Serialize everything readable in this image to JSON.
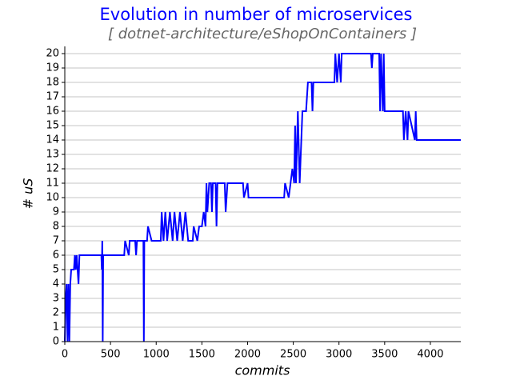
{
  "chart_data": {
    "type": "line",
    "title": "Evolution in number of microservices",
    "subtitle": "[ dotnet-architecture/eShopOnContainers ]",
    "x_label": "commits",
    "y_label": "# uS",
    "color": "#0000ff",
    "grid": true,
    "grid_axis": "y",
    "xlim": [
      0,
      4333
    ],
    "ylim": [
      0,
      20.5
    ],
    "xticks": [
      0,
      500,
      1000,
      1500,
      2000,
      2500,
      3000,
      3500,
      4000
    ],
    "yticks": [
      0,
      1,
      2,
      3,
      4,
      5,
      6,
      7,
      8,
      9,
      10,
      11,
      12,
      13,
      14,
      15,
      16,
      17,
      18,
      19,
      20
    ],
    "x": [
      0,
      10,
      20,
      30,
      40,
      50,
      60,
      70,
      100,
      110,
      120,
      130,
      150,
      160,
      170,
      400,
      405,
      410,
      415,
      420,
      650,
      660,
      700,
      710,
      770,
      780,
      790,
      860,
      865,
      870,
      900,
      910,
      950,
      1050,
      1060,
      1080,
      1100,
      1120,
      1150,
      1180,
      1200,
      1230,
      1260,
      1290,
      1320,
      1350,
      1400,
      1410,
      1450,
      1470,
      1500,
      1520,
      1540,
      1550,
      1560,
      1580,
      1600,
      1610,
      1620,
      1650,
      1660,
      1670,
      1750,
      1760,
      1780,
      1950,
      1960,
      2000,
      2010,
      2400,
      2410,
      2450,
      2470,
      2490,
      2510,
      2520,
      2530,
      2550,
      2570,
      2600,
      2640,
      2650,
      2660,
      2700,
      2710,
      2720,
      2950,
      2960,
      2980,
      3000,
      3020,
      3030,
      3350,
      3360,
      3370,
      3440,
      3450,
      3460,
      3480,
      3490,
      3500,
      3700,
      3710,
      3730,
      3750,
      3760,
      3830,
      3840,
      3850,
      4333
    ],
    "values": [
      0,
      3,
      4,
      0,
      4,
      0,
      4,
      5,
      5,
      6,
      5,
      6,
      4,
      6,
      6,
      6,
      5,
      7,
      0,
      6,
      6,
      7,
      6,
      7,
      7,
      6,
      7,
      7,
      0,
      7,
      7,
      8,
      7,
      7,
      9,
      7,
      9,
      7,
      9,
      7,
      9,
      7,
      9,
      7,
      9,
      7,
      7,
      8,
      7,
      8,
      8,
      9,
      8,
      11,
      9,
      11,
      11,
      9,
      11,
      11,
      8,
      11,
      11,
      9,
      11,
      11,
      10,
      11,
      10,
      10,
      11,
      10,
      11,
      12,
      11,
      15,
      11,
      16,
      11,
      16,
      16,
      17,
      18,
      18,
      16,
      18,
      18,
      20,
      18,
      20,
      18,
      20,
      20,
      19,
      20,
      20,
      16,
      20,
      16,
      20,
      16,
      16,
      14,
      16,
      14,
      16,
      14,
      16,
      14,
      14
    ]
  }
}
